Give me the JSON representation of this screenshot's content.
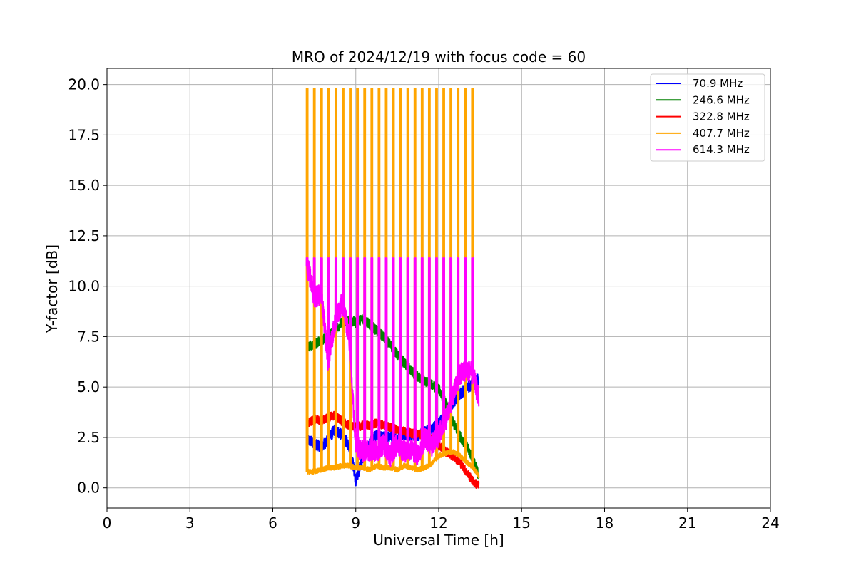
{
  "chart_data": {
    "type": "line",
    "title": "MRO of 2024/12/19 with focus code = 60",
    "xlabel": "Universal Time [h]",
    "ylabel": "Y-factor [dB]",
    "xlim": [
      0,
      24
    ],
    "ylim": [
      -1.0,
      20.8
    ],
    "xticks": [
      0,
      3,
      6,
      9,
      12,
      15,
      18,
      21,
      24
    ],
    "xtick_labels": [
      "0",
      "3",
      "6",
      "9",
      "12",
      "15",
      "18",
      "21",
      "24"
    ],
    "yticks": [
      0,
      2.5,
      5,
      7.5,
      10,
      12.5,
      15,
      17.5,
      20
    ],
    "ytick_labels": [
      "0.0",
      "2.5",
      "5.0",
      "7.5",
      "10.0",
      "12.5",
      "15.0",
      "17.5",
      "20.0"
    ],
    "grid": true,
    "legend_position": "top-right",
    "calibration_pulses": {
      "times": [
        7.22,
        7.48,
        7.74,
        8.0,
        8.26,
        8.52,
        8.78,
        9.04,
        9.3,
        9.56,
        9.82,
        10.08,
        10.34,
        10.6,
        10.86,
        11.12,
        11.38,
        11.64,
        11.9,
        12.16,
        12.42,
        12.68,
        12.94,
        13.2
      ],
      "peak_407_7_MHz": 19.8,
      "peak_614_3_MHz": 11.4
    },
    "series": [
      {
        "name": " 70.9 MHz",
        "color": "#0000ff",
        "x": [
          7.25,
          7.5,
          7.75,
          8.0,
          8.25,
          8.5,
          8.75,
          8.9,
          9.0,
          9.25,
          9.5,
          9.75,
          10.0,
          10.25,
          10.5,
          10.75,
          11.0,
          11.25,
          11.5,
          11.75,
          12.0,
          12.25,
          12.5,
          12.75,
          13.0,
          13.25,
          13.45
        ],
        "y": [
          2.4,
          2.2,
          2.0,
          2.4,
          2.9,
          2.6,
          2.1,
          1.2,
          0.3,
          1.5,
          2.2,
          2.6,
          2.5,
          2.6,
          2.4,
          2.7,
          2.6,
          2.6,
          2.8,
          2.9,
          3.2,
          3.6,
          4.2,
          4.6,
          4.9,
          5.2,
          5.4
        ]
      },
      {
        "name": "246.6 MHz",
        "color": "#008000",
        "x": [
          7.25,
          7.5,
          7.75,
          8.0,
          8.25,
          8.5,
          8.75,
          9.0,
          9.25,
          9.5,
          9.75,
          10.0,
          10.25,
          10.5,
          10.75,
          11.0,
          11.25,
          11.5,
          11.75,
          12.0,
          12.25,
          12.5,
          12.75,
          13.0,
          13.25,
          13.45
        ],
        "y": [
          7.0,
          7.1,
          7.3,
          7.5,
          7.8,
          8.2,
          8.3,
          8.2,
          8.4,
          8.1,
          7.8,
          7.5,
          7.1,
          6.6,
          6.2,
          5.8,
          5.5,
          5.3,
          5.1,
          4.9,
          4.2,
          3.3,
          2.6,
          2.1,
          1.4,
          0.6
        ]
      },
      {
        "name": "322.8 MHz",
        "color": "#ff0000",
        "x": [
          7.25,
          7.5,
          7.75,
          8.0,
          8.25,
          8.5,
          8.75,
          9.0,
          9.25,
          9.5,
          9.75,
          10.0,
          10.25,
          10.5,
          10.75,
          11.0,
          11.25,
          11.5,
          11.75,
          12.0,
          12.25,
          12.5,
          12.75,
          13.0,
          13.25,
          13.45
        ],
        "y": [
          3.2,
          3.4,
          3.3,
          3.5,
          3.6,
          3.3,
          3.1,
          3.0,
          3.1,
          3.1,
          3.2,
          3.1,
          3.0,
          2.9,
          2.8,
          2.7,
          2.7,
          2.6,
          2.4,
          2.1,
          1.8,
          1.6,
          1.3,
          0.8,
          0.3,
          0.1
        ]
      },
      {
        "name": "407.7 MHz",
        "color": "#ffa500",
        "x": [
          7.25,
          7.5,
          7.75,
          8.0,
          8.25,
          8.5,
          8.75,
          9.0,
          9.25,
          9.5,
          9.75,
          10.0,
          10.25,
          10.5,
          10.75,
          11.0,
          11.25,
          11.5,
          11.75,
          12.0,
          12.25,
          12.5,
          12.75,
          13.0,
          13.25,
          13.45
        ],
        "y": [
          0.8,
          0.8,
          0.9,
          1.0,
          1.0,
          1.1,
          1.1,
          1.0,
          1.0,
          0.9,
          1.1,
          1.0,
          1.0,
          0.9,
          1.1,
          1.0,
          0.9,
          1.0,
          1.2,
          1.6,
          1.7,
          1.8,
          1.6,
          1.3,
          1.0,
          0.6
        ]
      },
      {
        "name": "614.3 MHz",
        "color": "#ff00ff",
        "x": [
          7.25,
          7.5,
          7.75,
          8.0,
          8.25,
          8.5,
          8.75,
          9.0,
          9.25,
          9.5,
          9.75,
          10.0,
          10.25,
          10.5,
          10.75,
          11.0,
          11.25,
          11.5,
          11.75,
          12.0,
          12.25,
          12.5,
          12.75,
          13.0,
          13.25,
          13.45
        ],
        "y": [
          11.0,
          9.5,
          9.6,
          6.3,
          8.2,
          9.2,
          7.6,
          2.1,
          1.8,
          1.9,
          1.8,
          2.2,
          1.6,
          2.2,
          1.8,
          1.9,
          1.6,
          2.5,
          2.1,
          2.6,
          3.4,
          4.5,
          5.6,
          5.9,
          5.6,
          4.4
        ]
      }
    ]
  }
}
